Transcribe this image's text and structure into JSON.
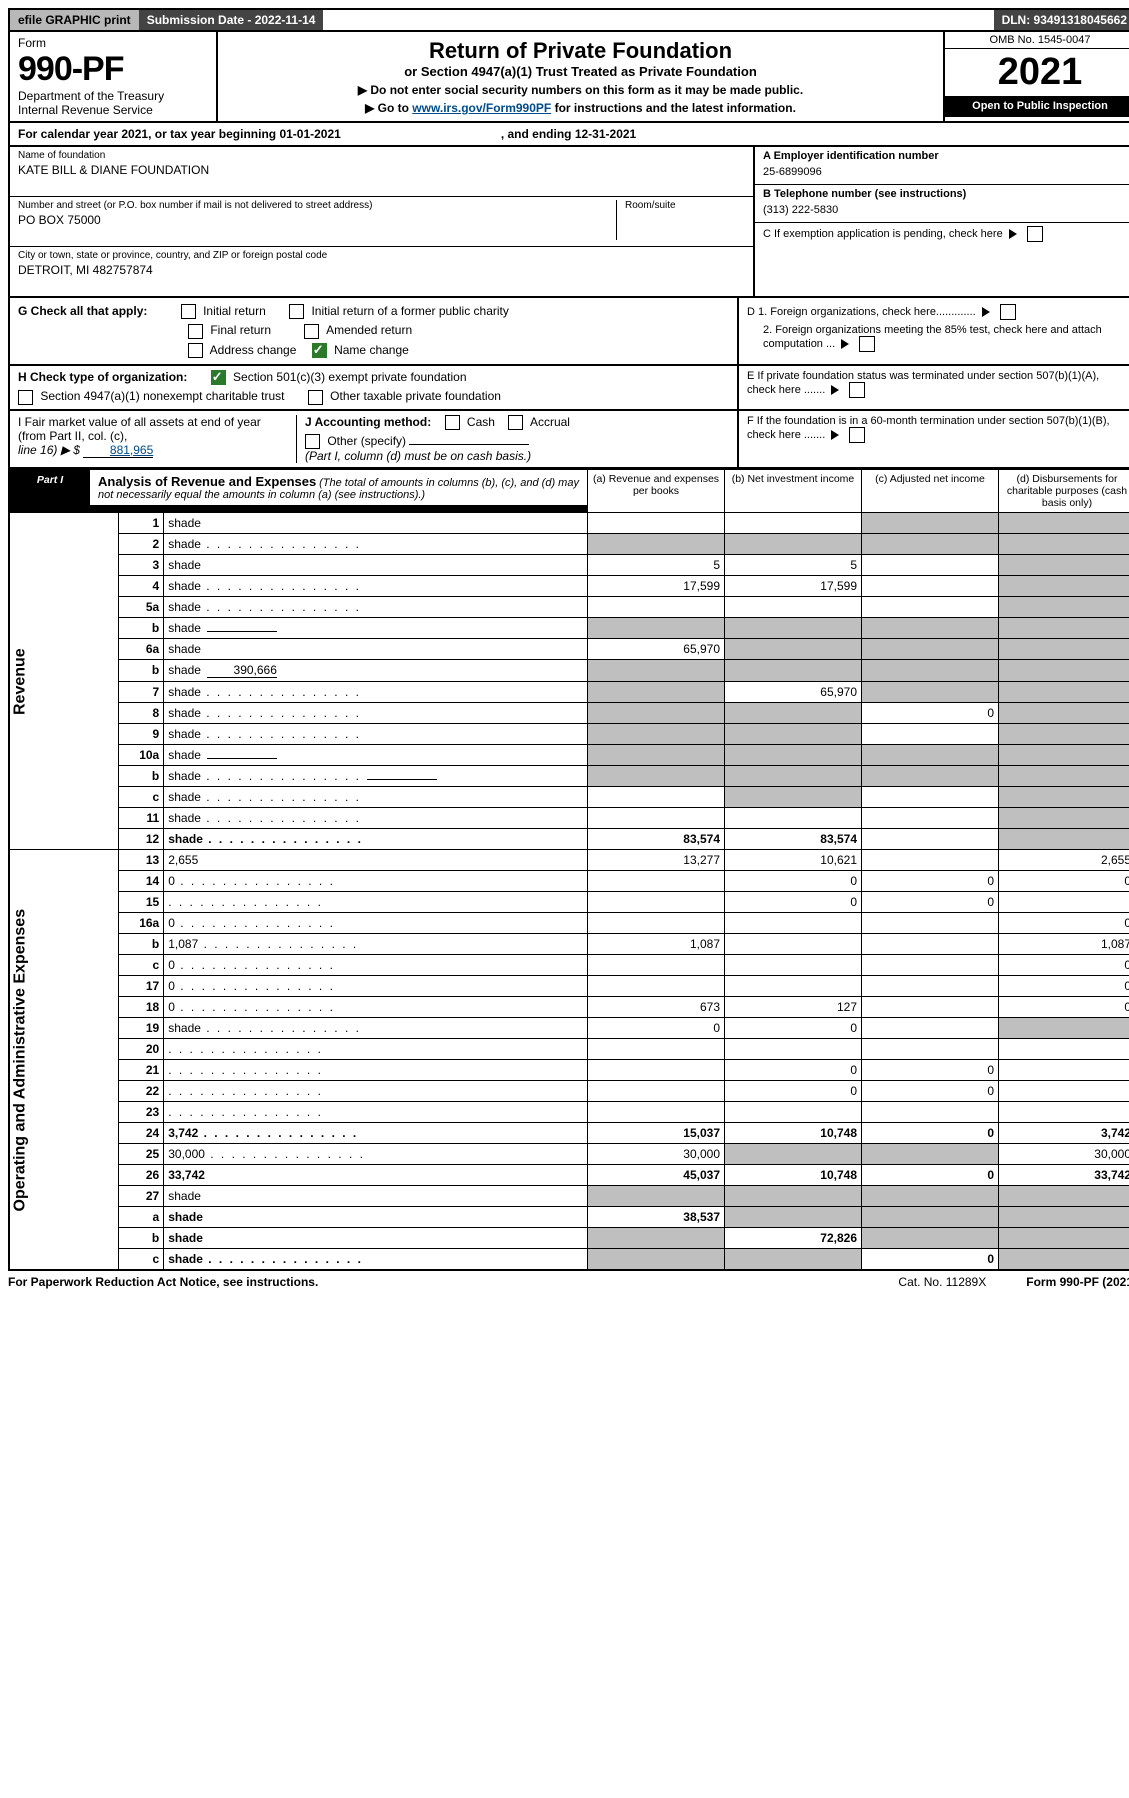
{
  "topbar": {
    "efile": "efile GRAPHIC print",
    "submission_label": "Submission Date - 2022-11-14",
    "dln": "DLN: 93491318045662"
  },
  "header": {
    "form_word": "Form",
    "form_no": "990-PF",
    "dept": "Department of the Treasury",
    "irs": "Internal Revenue Service",
    "title": "Return of Private Foundation",
    "subtitle": "or Section 4947(a)(1) Trust Treated as Private Foundation",
    "instr1": "▶ Do not enter social security numbers on this form as it may be made public.",
    "instr2_pre": "▶ Go to ",
    "instr2_link": "www.irs.gov/Form990PF",
    "instr2_post": " for instructions and the latest information.",
    "omb": "OMB No. 1545-0047",
    "year": "2021",
    "open": "Open to Public Inspection"
  },
  "calyear": {
    "text": "For calendar year 2021, or tax year beginning 01-01-2021",
    "ending": ", and ending 12-31-2021"
  },
  "entity": {
    "name_label": "Name of foundation",
    "name": "KATE BILL & DIANE FOUNDATION",
    "addr_label": "Number and street (or P.O. box number if mail is not delivered to street address)",
    "addr": "PO BOX 75000",
    "room_label": "Room/suite",
    "city_label": "City or town, state or province, country, and ZIP or foreign postal code",
    "city": "DETROIT, MI  482757874"
  },
  "right_info": {
    "a_label": "A Employer identification number",
    "a_val": "25-6899096",
    "b_label": "B Telephone number (see instructions)",
    "b_val": "(313) 222-5830",
    "c_label": "C If exemption application is pending, check here",
    "d1": "D 1. Foreign organizations, check here.............",
    "d2": "2. Foreign organizations meeting the 85% test, check here and attach computation ...",
    "e": "E  If private foundation status was terminated under section 507(b)(1)(A), check here .......",
    "f": "F  If the foundation is in a 60-month termination under section 507(b)(1)(B), check here ......."
  },
  "g": {
    "label": "G Check all that apply:",
    "initial": "Initial return",
    "initial_former": "Initial return of a former public charity",
    "final": "Final return",
    "amended": "Amended return",
    "addr_change": "Address change",
    "name_change": "Name change"
  },
  "h": {
    "label": "H Check type of organization:",
    "s501": "Section 501(c)(3) exempt private foundation",
    "s4947": "Section 4947(a)(1) nonexempt charitable trust",
    "other_tax": "Other taxable private foundation"
  },
  "i": {
    "label": "I Fair market value of all assets at end of year (from Part II, col. (c),",
    "line": "line 16) ▶ $",
    "val": "881,965"
  },
  "j": {
    "label": "J Accounting method:",
    "cash": "Cash",
    "accrual": "Accrual",
    "other": "Other (specify)",
    "note": "(Part I, column (d) must be on cash basis.)"
  },
  "part1": {
    "label": "Part I",
    "title": "Analysis of Revenue and Expenses",
    "note": "(The total of amounts in columns (b), (c), and (d) may not necessarily equal the amounts in column (a) (see instructions).)",
    "col_a": "(a)  Revenue and expenses per books",
    "col_b": "(b)  Net investment income",
    "col_c": "(c)  Adjusted net income",
    "col_d": "(d)  Disbursements for charitable purposes (cash basis only)"
  },
  "side": {
    "revenue": "Revenue",
    "opex": "Operating and Administrative Expenses"
  },
  "rows": [
    {
      "n": "1",
      "d": "shade",
      "a": "",
      "b": "",
      "c": "shade"
    },
    {
      "n": "2",
      "d": "shade",
      "dots": true,
      "a": "shade",
      "b": "shade",
      "c": "shade"
    },
    {
      "n": "3",
      "d": "shade",
      "a": "5",
      "b": "5",
      "c": ""
    },
    {
      "n": "4",
      "d": "shade",
      "dots": true,
      "a": "17,599",
      "b": "17,599",
      "c": ""
    },
    {
      "n": "5a",
      "d": "shade",
      "dots": true,
      "a": "",
      "b": "",
      "c": ""
    },
    {
      "n": "b",
      "d": "shade",
      "inline": "",
      "a": "shade",
      "b": "shade",
      "c": "shade"
    },
    {
      "n": "6a",
      "d": "shade",
      "a": "65,970",
      "b": "shade",
      "c": "shade"
    },
    {
      "n": "b",
      "d": "shade",
      "inline": "390,666",
      "a": "shade",
      "b": "shade",
      "c": "shade"
    },
    {
      "n": "7",
      "d": "shade",
      "dots": true,
      "a": "shade",
      "b": "65,970",
      "c": "shade"
    },
    {
      "n": "8",
      "d": "shade",
      "dots": true,
      "a": "shade",
      "b": "shade",
      "c": "0"
    },
    {
      "n": "9",
      "d": "shade",
      "dots": true,
      "a": "shade",
      "b": "shade",
      "c": ""
    },
    {
      "n": "10a",
      "d": "shade",
      "inline": "",
      "a": "shade",
      "b": "shade",
      "c": "shade"
    },
    {
      "n": "b",
      "d": "shade",
      "dots": true,
      "inline": "",
      "a": "shade",
      "b": "shade",
      "c": "shade"
    },
    {
      "n": "c",
      "d": "shade",
      "dots": true,
      "a": "",
      "b": "shade",
      "c": ""
    },
    {
      "n": "11",
      "d": "shade",
      "dots": true,
      "a": "",
      "b": "",
      "c": ""
    },
    {
      "n": "12",
      "d": "shade",
      "dots": true,
      "bold": true,
      "a": "83,574",
      "b": "83,574",
      "c": ""
    },
    {
      "n": "13",
      "d": "2,655",
      "a": "13,277",
      "b": "10,621",
      "c": ""
    },
    {
      "n": "14",
      "d": "0",
      "dots": true,
      "a": "",
      "b": "0",
      "c": "0"
    },
    {
      "n": "15",
      "d": "",
      "dots": true,
      "a": "",
      "b": "0",
      "c": "0"
    },
    {
      "n": "16a",
      "d": "0",
      "dots": true,
      "a": "",
      "b": "",
      "c": ""
    },
    {
      "n": "b",
      "d": "1,087",
      "dots": true,
      "a": "1,087",
      "b": "",
      "c": ""
    },
    {
      "n": "c",
      "d": "0",
      "dots": true,
      "a": "",
      "b": "",
      "c": ""
    },
    {
      "n": "17",
      "d": "0",
      "dots": true,
      "a": "",
      "b": "",
      "c": ""
    },
    {
      "n": "18",
      "d": "0",
      "dots": true,
      "a": "673",
      "b": "127",
      "c": ""
    },
    {
      "n": "19",
      "d": "shade",
      "dots": true,
      "a": "0",
      "b": "0",
      "c": ""
    },
    {
      "n": "20",
      "d": "",
      "dots": true,
      "a": "",
      "b": "",
      "c": ""
    },
    {
      "n": "21",
      "d": "",
      "dots": true,
      "a": "",
      "b": "0",
      "c": "0"
    },
    {
      "n": "22",
      "d": "",
      "dots": true,
      "a": "",
      "b": "0",
      "c": "0"
    },
    {
      "n": "23",
      "d": "",
      "dots": true,
      "a": "",
      "b": "",
      "c": ""
    },
    {
      "n": "24",
      "d": "3,742",
      "dots": true,
      "bold": true,
      "a": "15,037",
      "b": "10,748",
      "c": "0"
    },
    {
      "n": "25",
      "d": "30,000",
      "dots": true,
      "a": "30,000",
      "b": "shade",
      "c": "shade"
    },
    {
      "n": "26",
      "d": "33,742",
      "bold": true,
      "a": "45,037",
      "b": "10,748",
      "c": "0"
    },
    {
      "n": "27",
      "d": "shade",
      "a": "shade",
      "b": "shade",
      "c": "shade"
    },
    {
      "n": "a",
      "d": "shade",
      "bold": true,
      "a": "38,537",
      "b": "shade",
      "c": "shade"
    },
    {
      "n": "b",
      "d": "shade",
      "bold": true,
      "a": "shade",
      "b": "72,826",
      "c": "shade"
    },
    {
      "n": "c",
      "d": "shade",
      "dots": true,
      "bold": true,
      "a": "shade",
      "b": "shade",
      "c": "0"
    }
  ],
  "footer": {
    "left": "For Paperwork Reduction Act Notice, see instructions.",
    "mid": "Cat. No. 11289X",
    "right": "Form 990-PF (2021)"
  }
}
